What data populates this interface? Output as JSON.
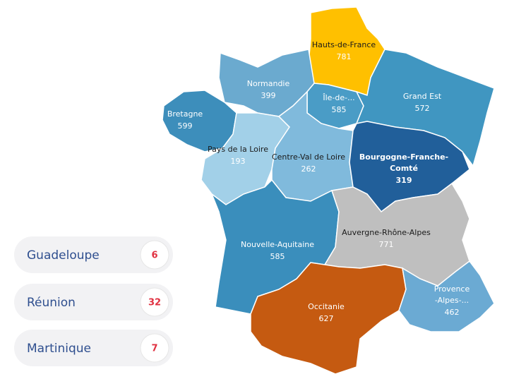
{
  "regions": [
    {
      "label": [
        "Hauts-de-France"
      ],
      "value": 781,
      "color": "#FFC000",
      "label_color": "#1a1a1a"
    },
    {
      "label": [
        "Normandie"
      ],
      "value": 399,
      "color": "#6BAACF",
      "label_color": "#ffffff"
    },
    {
      "label": [
        "Île-de-..."
      ],
      "value": 585,
      "color": "#4A9CC6",
      "label_color": "#ffffff"
    },
    {
      "label": [
        "Grand Est"
      ],
      "value": 572,
      "color": "#4096C1",
      "label_color": "#ffffff"
    },
    {
      "label": [
        "Bretagne"
      ],
      "value": 599,
      "color": "#3D8EBB",
      "label_color": "#ffffff"
    },
    {
      "label": [
        "Pays de la Loire"
      ],
      "value": 193,
      "color": "#A2D0E8",
      "label_color": "#1a1a1a"
    },
    {
      "label": [
        "Centre-Val de Loire"
      ],
      "value": 262,
      "color": "#80BADC",
      "label_color": "#1a1a1a"
    },
    {
      "label": [
        "Bourgogne-Franche-",
        "Comté"
      ],
      "value": 319,
      "color": "#215F9A",
      "label_color": "#ffffff"
    },
    {
      "label": [
        "Nouvelle-Aquitaine"
      ],
      "value": 585,
      "color": "#3A8EBC",
      "label_color": "#ffffff"
    },
    {
      "label": [
        "Auvergne-Rhône-Alpes"
      ],
      "value": 771,
      "color": "#BFBFBF",
      "label_color": "#1a1a1a"
    },
    {
      "label": [
        "Occitanie"
      ],
      "value": 627,
      "color": "#C55A11",
      "label_color": "#ffffff"
    },
    {
      "label": [
        "Provence",
        "-Alpes-..."
      ],
      "value": 462,
      "color": "#6BAAD3",
      "label_color": "#ffffff"
    }
  ],
  "overseas": [
    {
      "name": "Guadeloupe",
      "value": 6
    },
    {
      "name": "Réunion",
      "value": 32
    },
    {
      "name": "Martinique",
      "value": 7
    }
  ]
}
